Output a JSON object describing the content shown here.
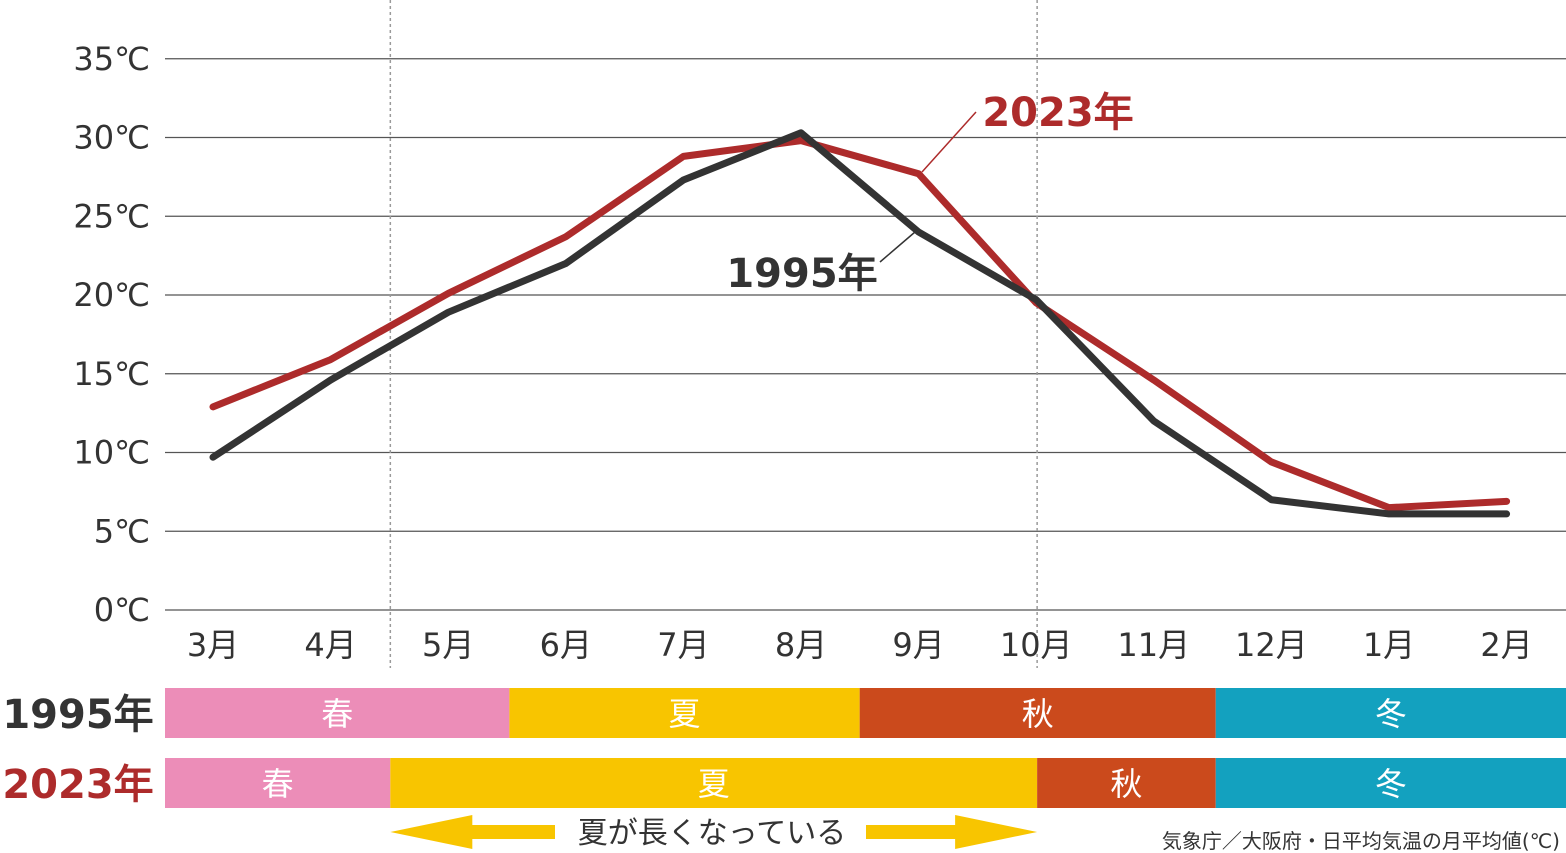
{
  "chart_data": {
    "type": "line",
    "title": "",
    "xlabel": "",
    "ylabel": "",
    "categories": [
      "3月",
      "4月",
      "5月",
      "6月",
      "7月",
      "8月",
      "9月",
      "10月",
      "11月",
      "12月",
      "1月",
      "2月"
    ],
    "y_ticks": [
      "0℃",
      "5℃",
      "10℃",
      "15℃",
      "20℃",
      "25℃",
      "30℃",
      "35℃"
    ],
    "ylim": [
      0,
      35
    ],
    "grid": true,
    "series": [
      {
        "name": "2023年",
        "color": "#ad2b2b",
        "values": [
          12.9,
          15.9,
          20.1,
          23.7,
          28.8,
          29.8,
          27.7,
          19.5,
          14.6,
          9.4,
          6.5,
          6.9
        ]
      },
      {
        "name": "1995年",
        "color": "#333333",
        "values": [
          9.7,
          14.6,
          18.9,
          22.0,
          27.3,
          30.3,
          24.0,
          19.7,
          12.0,
          7.0,
          6.1,
          6.1
        ]
      }
    ],
    "season_bands": [
      {
        "label": "1995年",
        "color": "#333333",
        "segments": [
          {
            "name": "春",
            "start": 2.3,
            "end": 5.25,
            "color": "#ec8db8"
          },
          {
            "name": "夏",
            "start": 5.25,
            "end": 8.25,
            "color": "#f8c500"
          },
          {
            "name": "秋",
            "start": 8.25,
            "end": 11.3,
            "color": "#cb4a1c"
          },
          {
            "name": "冬",
            "start": 11.3,
            "end": 14.3,
            "color": "#13a1bf"
          }
        ]
      },
      {
        "label": "2023年",
        "color": "#ad2b2b",
        "segments": [
          {
            "name": "春",
            "start": 2.3,
            "end": 4.23,
            "color": "#ec8db8"
          },
          {
            "name": "夏",
            "start": 4.23,
            "end": 9.77,
            "color": "#f8c500"
          },
          {
            "name": "秋",
            "start": 9.77,
            "end": 11.3,
            "color": "#cb4a1c"
          },
          {
            "name": "冬",
            "start": 11.3,
            "end": 14.3,
            "color": "#13a1bf"
          }
        ]
      }
    ],
    "annotation_text": "夏が長くなっている",
    "annotation_color": "#f8c500",
    "source": "気象庁／大阪府・日平均気温の月平均値(℃)"
  }
}
